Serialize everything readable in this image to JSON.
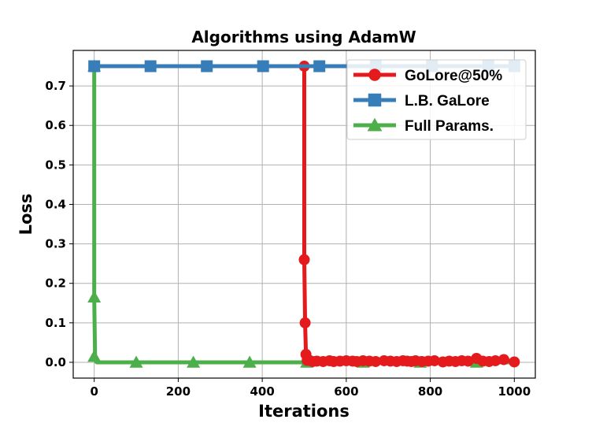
{
  "chart_data": {
    "type": "line",
    "title": "Algorithms using AdamW",
    "xlabel": "Iterations",
    "ylabel": "Loss",
    "xlim": [
      -50,
      1050
    ],
    "ylim": [
      -0.04,
      0.79
    ],
    "xticks": [
      0,
      200,
      400,
      600,
      800,
      1000
    ],
    "yticks": [
      0.0,
      0.1,
      0.2,
      0.3,
      0.4,
      0.5,
      0.6,
      0.7
    ],
    "ytick_labels": [
      "0.0",
      "0.1",
      "0.2",
      "0.3",
      "0.4",
      "0.5",
      "0.6",
      "0.7"
    ],
    "grid": true,
    "legend_position": "top-right",
    "series": [
      {
        "name": "GoLore@50%",
        "color": "#e41a1c",
        "marker": "circle",
        "x": [
          0,
          500,
          500,
          502,
          504,
          507,
          512,
          520,
          530,
          545,
          560,
          570,
          585,
          600,
          615,
          625,
          640,
          655,
          670,
          690,
          705,
          720,
          735,
          745,
          755,
          765,
          780,
          795,
          810,
          830,
          845,
          860,
          875,
          890,
          910,
          925,
          940,
          955,
          975,
          1000
        ],
        "y": [
          0.75,
          0.75,
          0.26,
          0.1,
          0.02,
          0.005,
          0.005,
          0.002,
          0.003,
          0.002,
          0.004,
          0.002,
          0.003,
          0.004,
          0.003,
          0.002,
          0.004,
          0.003,
          0.002,
          0.004,
          0.003,
          0.002,
          0.004,
          0.003,
          0.002,
          0.004,
          0.002,
          0.003,
          0.004,
          0.001,
          0.003,
          0.002,
          0.004,
          0.003,
          0.01,
          0.003,
          0.002,
          0.004,
          0.007,
          0.001
        ]
      },
      {
        "name": "L.B. GaLore",
        "color": "#377eb8",
        "marker": "square",
        "x": [
          0,
          134,
          268,
          402,
          536,
          670,
          804,
          938,
          1000
        ],
        "y": [
          0.75,
          0.75,
          0.75,
          0.75,
          0.75,
          0.75,
          0.75,
          0.75,
          0.75
        ]
      },
      {
        "name": "Full Params.",
        "color": "#4daf4a",
        "marker": "triangle",
        "x": [
          0,
          0,
          2,
          4,
          6,
          10,
          100,
          236,
          370,
          506,
          640,
          776,
          910,
          1000
        ],
        "y": [
          0.75,
          0.165,
          0.015,
          0.002,
          0.0,
          0.0,
          0.0,
          0.0,
          0.0,
          0.0,
          0.0,
          0.0,
          0.0,
          0.0
        ],
        "marker_x": [
          0,
          0,
          0,
          100,
          236,
          370,
          506,
          640,
          776,
          910
        ],
        "marker_y": [
          0.75,
          0.165,
          0.015,
          0.0,
          0.0,
          0.0,
          0.0,
          0.0,
          0.0,
          0.0
        ]
      }
    ]
  }
}
